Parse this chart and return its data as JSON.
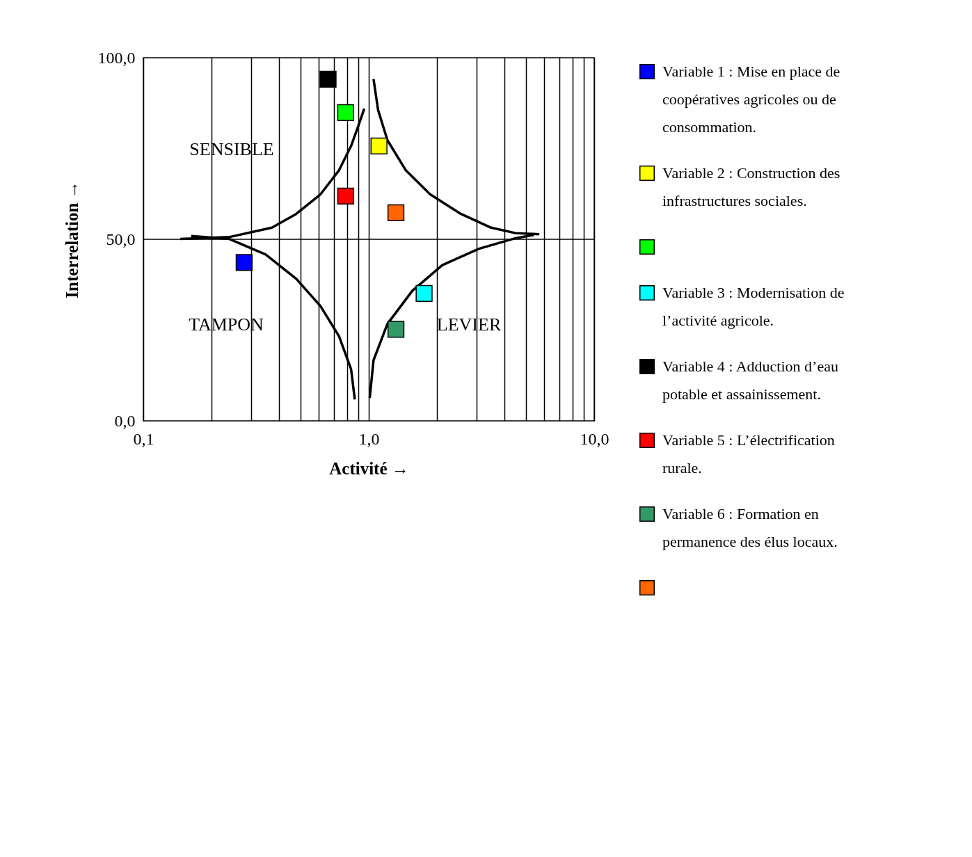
{
  "chart_data": {
    "type": "scatter",
    "xlabel": "Activité →",
    "ylabel": "Interrelation →",
    "log": "x",
    "xlim": [
      0.1,
      10
    ],
    "ylim": [
      0,
      100
    ],
    "xticks": [
      {
        "value": 0.1,
        "label": "0,1"
      },
      {
        "value": 0.2,
        "label": null
      },
      {
        "value": 0.3,
        "label": null
      },
      {
        "value": 0.4,
        "label": null
      },
      {
        "value": 0.5,
        "label": null
      },
      {
        "value": 0.6,
        "label": null
      },
      {
        "value": 0.7,
        "label": null
      },
      {
        "value": 0.8,
        "label": null
      },
      {
        "value": 0.9,
        "label": null
      },
      {
        "value": 1,
        "label": "1,0"
      },
      {
        "value": 2,
        "label": null
      },
      {
        "value": 3,
        "label": null
      },
      {
        "value": 4,
        "label": null
      },
      {
        "value": 5,
        "label": null
      },
      {
        "value": 6,
        "label": null
      },
      {
        "value": 7,
        "label": null
      },
      {
        "value": 8,
        "label": null
      },
      {
        "value": 9,
        "label": null
      },
      {
        "value": 10,
        "label": "10,0"
      }
    ],
    "yticks": [
      {
        "value": 0,
        "label": "0,0"
      },
      {
        "value": 50,
        "label": "50,0"
      },
      {
        "value": 100,
        "label": "100,0"
      }
    ],
    "grid": "x",
    "legend": "right",
    "marker": "square",
    "ref_lines": [
      {
        "axis": "y",
        "value": 50,
        "color": "#000000"
      }
    ],
    "annotations": [
      "SENSIBLE",
      "TAMPON",
      "LEVIER"
    ],
    "series": [
      {
        "type": "line",
        "color": "#000000",
        "line_style": "solid",
        "marker": "none",
        "x": [
          0.146,
          0.24,
          0.372,
          0.477,
          0.611,
          0.738,
          0.835,
          0.902,
          0.955
        ],
        "values": [
          50.1,
          50.6,
          53.2,
          57.0,
          62.4,
          69.0,
          75.7,
          81.5,
          86.0
        ]
      },
      {
        "type": "line",
        "color": "#000000",
        "line_style": "solid",
        "marker": "none",
        "x": [
          1.05,
          1.1,
          1.21,
          1.46,
          1.87,
          2.56,
          3.49,
          4.48,
          5.71
        ],
        "values": [
          94.1,
          85.6,
          77.3,
          69.0,
          62.4,
          57.0,
          53.2,
          51.7,
          51.4
        ]
      },
      {
        "type": "line",
        "color": "#000000",
        "line_style": "solid",
        "marker": "none",
        "x": [
          0.163,
          0.24,
          0.349,
          0.477,
          0.611,
          0.738,
          0.835,
          0.867
        ],
        "values": [
          50.9,
          50.1,
          45.8,
          39.1,
          31.6,
          23.3,
          14.2,
          5.9
        ]
      },
      {
        "type": "line",
        "color": "#000000",
        "line_style": "solid",
        "marker": "none",
        "x": [
          1.01,
          1.05,
          1.21,
          1.56,
          2.12,
          3.08,
          4.48,
          5.4
        ],
        "values": [
          6.3,
          16.7,
          26.7,
          35.8,
          42.9,
          47.4,
          50.3,
          51.2
        ]
      },
      {
        "name": "Variable 1 : Mise en place de coopératives agricoles ou de consommation.",
        "color": "#0000ff",
        "x": [
          0.28
        ],
        "values": [
          43.6
        ]
      },
      {
        "name": "Variable 2 : Construction des infrastructures sociales.",
        "color": "#ffff00",
        "x": [
          1.11
        ],
        "values": [
          75.7
        ]
      },
      {
        "color": "#00ff00",
        "x": [
          0.79
        ],
        "values": [
          84.9
        ]
      },
      {
        "name": "Variable 3 : Modernisation de l’activité agricole.",
        "color": "#00ffff",
        "x": [
          1.76
        ],
        "values": [
          35.1
        ]
      },
      {
        "name": "Variable 4 : Adduction d’eau potable et assainissement.",
        "color": "#000000",
        "x": [
          0.66
        ],
        "values": [
          94.1
        ]
      },
      {
        "name": "Variable 5 : L’électrification rurale.",
        "color": "#ff0000",
        "x": [
          0.79
        ],
        "values": [
          61.9
        ]
      },
      {
        "name": "Variable 6 : Formation en permanence des élus locaux.",
        "color": "#339966",
        "x": [
          1.32
        ],
        "values": [
          25.2
        ]
      },
      {
        "color": "#ff6600",
        "x": [
          1.32
        ],
        "values": [
          57.3
        ]
      }
    ]
  }
}
